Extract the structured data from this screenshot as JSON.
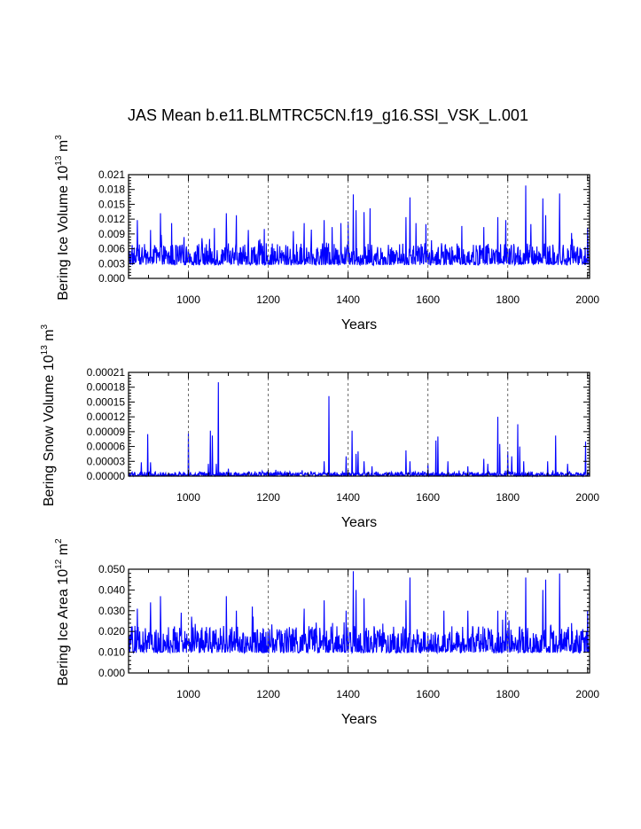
{
  "title": "JAS Mean b.e11.BLMTRC5CN.f19_g16.SSI_VSK_L.001",
  "colors": {
    "series": "#0000ff",
    "axis": "#000000",
    "refline": "#666666"
  },
  "chart_data": [
    {
      "type": "line",
      "ylabel_main": "Bering Ice Volume 10",
      "ylabel_exp": "13",
      "ylabel_unit": " m",
      "ylabel_unit_exp": "3",
      "xlabel": "Years",
      "xlim": [
        850,
        2005
      ],
      "ylim": [
        0,
        0.021
      ],
      "xticks": [
        "1000",
        "1200",
        "1400",
        "1600",
        "1800",
        "2000"
      ],
      "yticks": [
        "0.000",
        "0.003",
        "0.006",
        "0.009",
        "0.012",
        "0.015",
        "0.018",
        "0.021"
      ],
      "ref_lines": [
        1000,
        1200,
        1400,
        1600,
        1800
      ],
      "series": {
        "base": 0.0035,
        "noise": 0.0022,
        "min": 0.0005,
        "spikes": [
          [
            872,
            0.0118
          ],
          [
            905,
            0.0098
          ],
          [
            930,
            0.0132
          ],
          [
            958,
            0.0112
          ],
          [
            1065,
            0.0102
          ],
          [
            1095,
            0.0132
          ],
          [
            1120,
            0.0128
          ],
          [
            1150,
            0.0098
          ],
          [
            1190,
            0.01
          ],
          [
            1290,
            0.0112
          ],
          [
            1340,
            0.0118
          ],
          [
            1360,
            0.0104
          ],
          [
            1382,
            0.0112
          ],
          [
            1400,
            0.0115
          ],
          [
            1413,
            0.017
          ],
          [
            1420,
            0.0138
          ],
          [
            1440,
            0.0134
          ],
          [
            1455,
            0.0142
          ],
          [
            1545,
            0.0124
          ],
          [
            1555,
            0.0164
          ],
          [
            1570,
            0.0112
          ],
          [
            1595,
            0.011
          ],
          [
            1685,
            0.0106
          ],
          [
            1740,
            0.0104
          ],
          [
            1775,
            0.0124
          ],
          [
            1795,
            0.0118
          ],
          [
            1845,
            0.0188
          ],
          [
            1858,
            0.011
          ],
          [
            1888,
            0.0162
          ],
          [
            1895,
            0.0128
          ],
          [
            1930,
            0.0172
          ],
          [
            1960,
            0.0092
          ],
          [
            2000,
            0.0102
          ]
        ]
      }
    },
    {
      "type": "line",
      "ylabel_main": "Bering Snow Volume 10",
      "ylabel_exp": "13",
      "ylabel_unit": " m",
      "ylabel_unit_exp": "3",
      "xlabel": "Years",
      "xlim": [
        850,
        2005
      ],
      "ylim": [
        0,
        0.00021
      ],
      "xticks": [
        "1000",
        "1200",
        "1400",
        "1600",
        "1800",
        "2000"
      ],
      "yticks": [
        "0.00000",
        "0.00003",
        "0.00006",
        "0.00009",
        "0.00012",
        "0.00015",
        "0.00018",
        "0.00021"
      ],
      "ref_lines": [
        1000,
        1200,
        1400,
        1600,
        1800
      ],
      "series": {
        "base": 2e-06,
        "noise": 4e-06,
        "min": 0,
        "spikes": [
          [
            882,
            2.8e-05
          ],
          [
            898,
            8.5e-05
          ],
          [
            905,
            2.8e-05
          ],
          [
            1000,
            8.6e-05
          ],
          [
            1050,
            2.5e-05
          ],
          [
            1055,
            9.2e-05
          ],
          [
            1060,
            8.2e-05
          ],
          [
            1070,
            2.5e-05
          ],
          [
            1075,
            0.00019
          ],
          [
            1100,
            1.5e-05
          ],
          [
            1185,
            1e-05
          ],
          [
            1340,
            3e-05
          ],
          [
            1352,
            0.000162
          ],
          [
            1395,
            4e-05
          ],
          [
            1410,
            9.2e-05
          ],
          [
            1420,
            4.5e-05
          ],
          [
            1425,
            5e-05
          ],
          [
            1440,
            3e-05
          ],
          [
            1460,
            2e-05
          ],
          [
            1545,
            5.2e-05
          ],
          [
            1555,
            3e-05
          ],
          [
            1600,
            2.5e-05
          ],
          [
            1620,
            7.2e-05
          ],
          [
            1625,
            8e-05
          ],
          [
            1650,
            3e-05
          ],
          [
            1700,
            2e-05
          ],
          [
            1740,
            3.5e-05
          ],
          [
            1750,
            2.5e-05
          ],
          [
            1775,
            0.00012
          ],
          [
            1780,
            6.5e-05
          ],
          [
            1800,
            5e-05
          ],
          [
            1810,
            4e-05
          ],
          [
            1825,
            0.000105
          ],
          [
            1830,
            6e-05
          ],
          [
            1840,
            3e-05
          ],
          [
            1900,
            3e-05
          ],
          [
            1920,
            8.2e-05
          ],
          [
            1950,
            2.5e-05
          ],
          [
            1995,
            7e-05
          ]
        ]
      }
    },
    {
      "type": "line",
      "ylabel_main": "Bering Ice Area 10",
      "ylabel_exp": "12",
      "ylabel_unit": " m",
      "ylabel_unit_exp": "2",
      "xlabel": "Years",
      "xlim": [
        850,
        2005
      ],
      "ylim": [
        0,
        0.05
      ],
      "xticks": [
        "1000",
        "1200",
        "1400",
        "1600",
        "1800",
        "2000"
      ],
      "yticks": [
        "0.000",
        "0.010",
        "0.020",
        "0.030",
        "0.040",
        "0.050"
      ],
      "ref_lines": [
        1000,
        1200,
        1400,
        1600,
        1800
      ],
      "series": {
        "base": 0.012,
        "noise": 0.0065,
        "min": 0.002,
        "spikes": [
          [
            872,
            0.031
          ],
          [
            905,
            0.034
          ],
          [
            930,
            0.037
          ],
          [
            1095,
            0.037
          ],
          [
            1120,
            0.03
          ],
          [
            1160,
            0.032
          ],
          [
            1290,
            0.031
          ],
          [
            1340,
            0.035
          ],
          [
            1395,
            0.03
          ],
          [
            1413,
            0.049
          ],
          [
            1420,
            0.04
          ],
          [
            1440,
            0.036
          ],
          [
            1545,
            0.035
          ],
          [
            1555,
            0.046
          ],
          [
            1640,
            0.03
          ],
          [
            1700,
            0.03
          ],
          [
            1775,
            0.03
          ],
          [
            1795,
            0.03
          ],
          [
            1845,
            0.046
          ],
          [
            1888,
            0.04
          ],
          [
            1895,
            0.045
          ],
          [
            1930,
            0.048
          ],
          [
            1960,
            0.024
          ],
          [
            2000,
            0.03
          ]
        ]
      }
    }
  ]
}
